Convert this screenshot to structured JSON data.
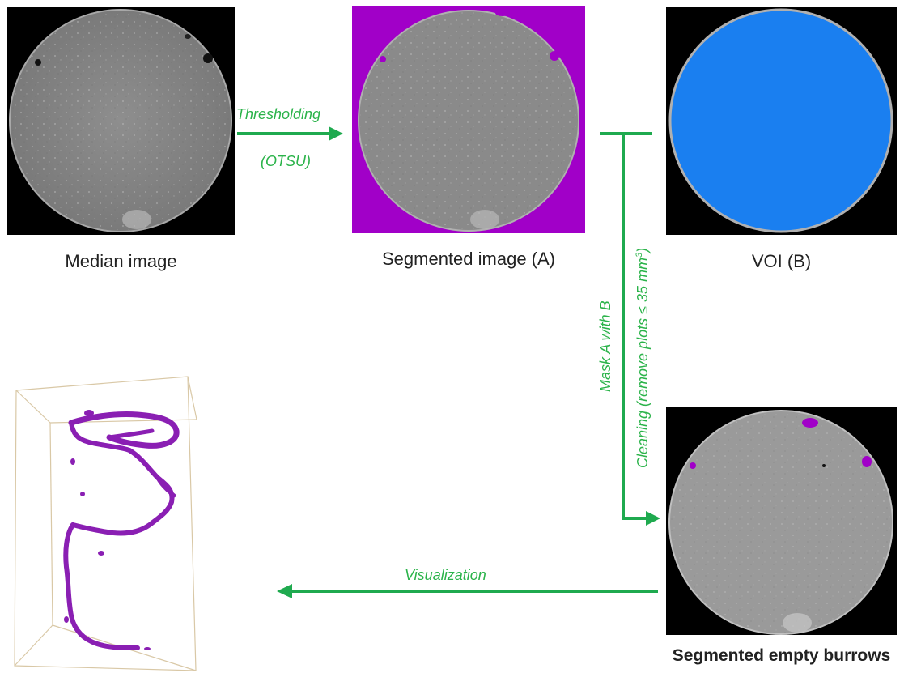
{
  "panels": {
    "median": {
      "caption": "Median image"
    },
    "segmented": {
      "caption": "Segmented image (A)"
    },
    "voi": {
      "caption": "VOI (B)"
    },
    "burrows": {
      "caption": "Segmented empty burrows"
    }
  },
  "arrows": {
    "thresholding": {
      "label_line1": "Thresholding",
      "label_line2": "(OTSU)"
    },
    "mask": {
      "label_line1": "Mask A with B",
      "label_line2": "Cleaning  (remove plots ≤ 35 mm",
      "label_superscript": "3",
      "label_close": ")"
    },
    "visualization": {
      "label": "Visualization"
    }
  },
  "colors": {
    "arrow": "#1faa4f",
    "label": "#2bb34a",
    "segmentation": "#a100c8",
    "voi_fill": "#1a7ff0",
    "burrow_3d": "#8a1fb3",
    "bounding_box": "#d9c8a6"
  }
}
